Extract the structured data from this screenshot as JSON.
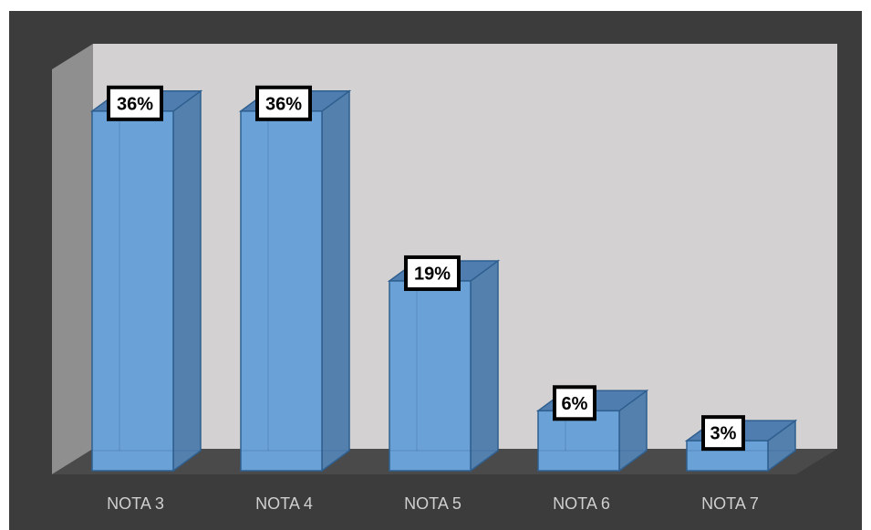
{
  "chart_data": {
    "type": "bar",
    "categories": [
      "NOTA 3",
      "NOTA 4",
      "NOTA 5",
      "NOTA 6",
      "NOTA 7"
    ],
    "values": [
      36,
      36,
      19,
      6,
      3
    ],
    "data_labels": [
      "36%",
      "36%",
      "19%",
      "6%",
      "3%"
    ],
    "title": "",
    "xlabel": "",
    "ylabel": "",
    "ylim": [
      0,
      40
    ],
    "grid": false,
    "legend": "none",
    "three_d": true,
    "colors": {
      "bar_front": "#6aa2d8",
      "bar_side": "#5480ad",
      "bar_top": "#4f7db0",
      "bar_edge": "#2f5f8f",
      "back_wall": "#d3d1d2",
      "side_wall": "#8f8f8f",
      "floor": "#4a4a4a",
      "background": "#3c3c3c",
      "label_box_fill": "#ffffff",
      "label_box_border": "#000000",
      "category_text": "#cfcfcf"
    }
  }
}
